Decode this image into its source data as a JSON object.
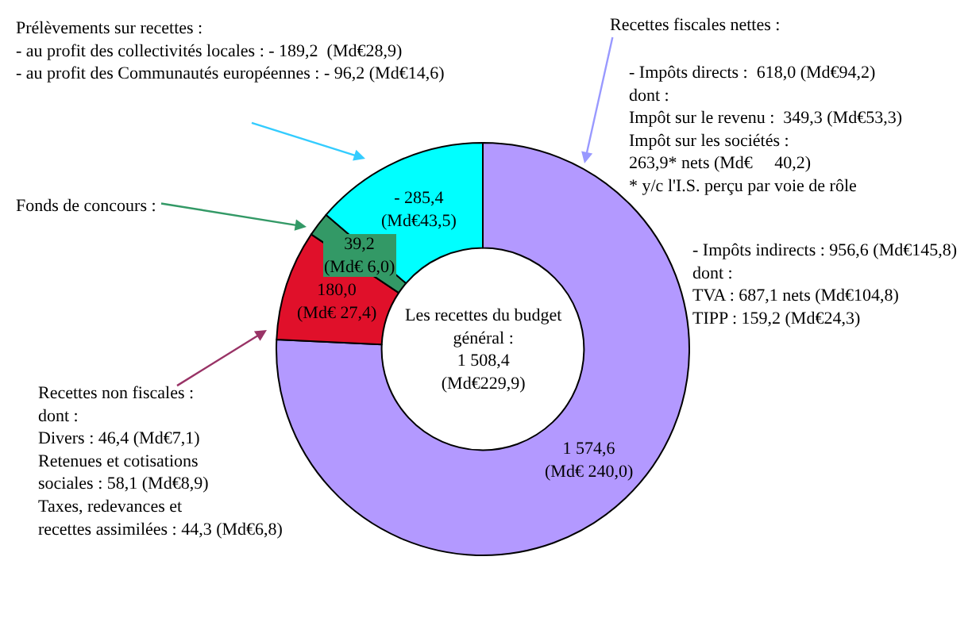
{
  "chart_data": {
    "type": "donut",
    "categories": [
      null,
      null,
      null,
      null
    ],
    "values": [
      1574.6,
      180.0,
      39.2,
      285.4
    ],
    "colors": [
      "#b399ff",
      "#e0102a",
      "#339966",
      "#00ffff"
    ],
    "value_labels": [
      "1 574,6\n(Md€ 240,0)",
      "180,0\n(Md€ 27,4)",
      "39,2\n(Md€ 6,0)",
      "- 285,4\n(Md€43,5)"
    ],
    "legend": false,
    "annotations": [
      "Prélèvements sur recettes :\n- au profit des collectivités locales : - 189,2  (Md€28,9)\n- au profit des Communautés européennes : - 96,2 (Md€14,6)",
      "Fonds de concours :",
      "Recettes fiscales nettes :",
      "- Impôts directs :  618,0 (Md€94,2)\ndont :\nImpôt sur le revenu :  349,3 (Md€53,3)\nImpôt sur les sociétés :\n263,9* nets (Md€     40,2)\n* y/c l'I.S. perçu par voie de rôle",
      "- Impôts indirects : 956,6 (Md€145,8)\ndont :\nTVA : 687,1 nets (Md€104,8)\nTIPP : 159,2 (Md€24,3)",
      "Recettes non fiscales :\ndont :\nDivers : 46,4 (Md€7,1)\nRetenues et cotisations\nsociales : 58,1 (Md€8,9)\nTaxes, redevances et\nrecettes assimilées : 44,3 (Md€6,8)",
      "Les recettes du budget\ngénéral :\n1 508,4\n(Md€229,9)"
    ]
  }
}
